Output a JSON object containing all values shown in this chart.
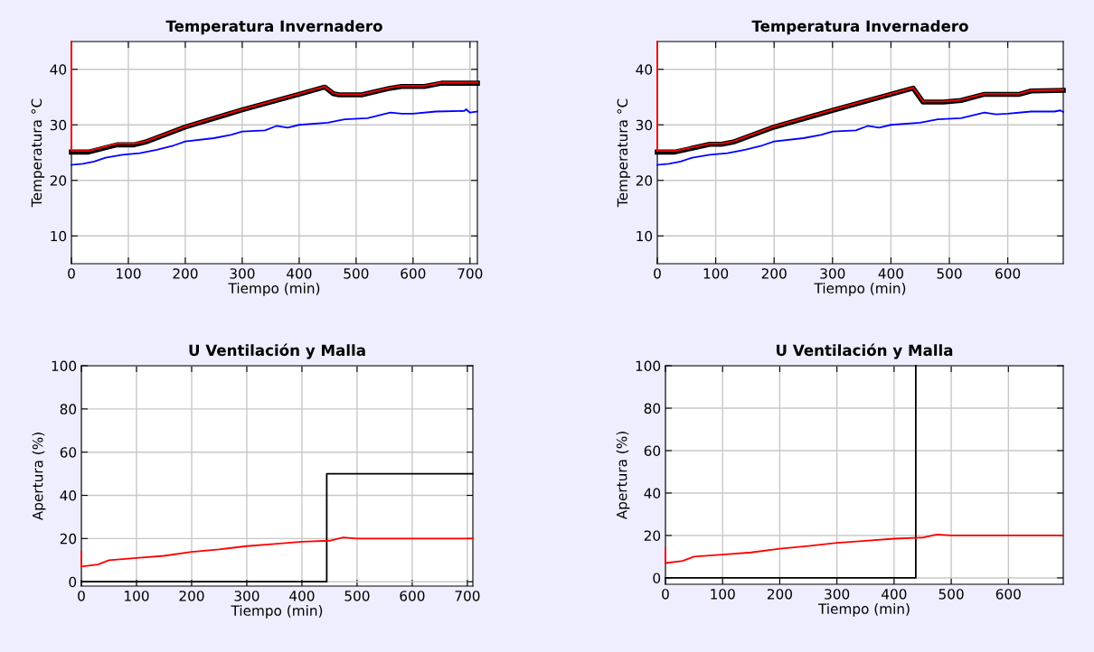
{
  "chart_data": [
    {
      "type": "line",
      "title": "Temperatura Invernadero",
      "xlabel": "Tiempo (min)",
      "ylabel": "Temperatura °C",
      "xlim": [
        0,
        713
      ],
      "ylim": [
        5,
        45
      ],
      "xticks": [
        0,
        100,
        200,
        300,
        400,
        500,
        600,
        700
      ],
      "yticks": [
        10,
        20,
        30,
        40
      ],
      "grid": true,
      "series": [
        {
          "color": "#000000",
          "x": [
            0,
            30,
            80,
            110,
            130,
            200,
            300,
            400,
            445,
            460,
            470,
            510,
            560,
            580,
            620,
            650,
            713
          ],
          "values": [
            25.1,
            25.1,
            26.4,
            26.4,
            26.9,
            29.6,
            32.7,
            35.5,
            36.8,
            35.6,
            35.4,
            35.4,
            36.6,
            36.9,
            36.9,
            37.5,
            37.5
          ]
        },
        {
          "color": "#ff0000",
          "x": [
            0,
            0,
            30,
            80,
            110,
            130,
            200,
            300,
            400,
            445,
            460,
            470,
            510,
            560,
            580,
            620,
            650,
            713
          ],
          "values": [
            45,
            25.3,
            25.3,
            26.6,
            26.6,
            27,
            29.7,
            32.8,
            35.6,
            36.9,
            35.7,
            35.5,
            35.5,
            36.7,
            37,
            37,
            37.6,
            37.6
          ]
        },
        {
          "color": "#0000ff",
          "x": [
            0,
            20,
            40,
            60,
            90,
            120,
            150,
            180,
            200,
            250,
            280,
            300,
            340,
            360,
            380,
            400,
            450,
            480,
            520,
            560,
            580,
            600,
            640,
            690,
            693,
            700,
            713
          ],
          "values": [
            22.8,
            23,
            23.4,
            24.1,
            24.6,
            24.9,
            25.5,
            26.3,
            27,
            27.6,
            28.2,
            28.8,
            29,
            29.8,
            29.5,
            30,
            30.4,
            31,
            31.2,
            32.2,
            32,
            32,
            32.4,
            32.5,
            32.8,
            32.2,
            32.4
          ]
        }
      ]
    },
    {
      "type": "line",
      "title": "Temperatura Invernadero",
      "xlabel": "Tiempo (min)",
      "ylabel": "Temperatura °C",
      "xlim": [
        0,
        695
      ],
      "ylim": [
        5,
        45
      ],
      "xticks": [
        0,
        100,
        200,
        300,
        400,
        500,
        600
      ],
      "yticks": [
        10,
        20,
        30,
        40
      ],
      "grid": true,
      "series": [
        {
          "color": "#000000",
          "x": [
            0,
            30,
            90,
            110,
            130,
            200,
            300,
            400,
            438,
            455,
            490,
            520,
            560,
            620,
            640,
            695
          ],
          "values": [
            25.1,
            25.1,
            26.5,
            26.5,
            26.9,
            29.6,
            32.6,
            35.5,
            36.6,
            34.1,
            34.1,
            34.4,
            35.5,
            35.5,
            36.1,
            36.2
          ]
        },
        {
          "color": "#ff0000",
          "x": [
            0,
            0,
            30,
            90,
            110,
            130,
            200,
            300,
            400,
            438,
            455,
            490,
            520,
            560,
            620,
            640,
            695
          ],
          "values": [
            45,
            25.3,
            25.3,
            26.6,
            26.6,
            27,
            29.7,
            32.7,
            35.6,
            36.7,
            34.2,
            34.2,
            34.5,
            35.6,
            35.6,
            36.2,
            36.3
          ]
        },
        {
          "color": "#0000ff",
          "x": [
            0,
            20,
            40,
            60,
            90,
            120,
            150,
            180,
            200,
            250,
            280,
            300,
            340,
            360,
            380,
            400,
            450,
            480,
            520,
            560,
            580,
            600,
            640,
            680,
            690,
            695
          ],
          "values": [
            22.8,
            23,
            23.4,
            24.1,
            24.6,
            24.9,
            25.5,
            26.3,
            27,
            27.6,
            28.2,
            28.8,
            29,
            29.8,
            29.5,
            30,
            30.4,
            31,
            31.2,
            32.2,
            31.9,
            32,
            32.4,
            32.4,
            32.6,
            32.3
          ]
        }
      ]
    },
    {
      "type": "line",
      "title": "U Ventilación y Malla",
      "xlabel": "Tiempo (min)",
      "ylabel": "Apertura (%)",
      "xlim": [
        0,
        710
      ],
      "ylim": [
        -2,
        100
      ],
      "xticks": [
        0,
        100,
        200,
        300,
        400,
        500,
        600,
        700
      ],
      "yticks": [
        0,
        20,
        40,
        60,
        80,
        100
      ],
      "grid": true,
      "series": [
        {
          "color": "#000000",
          "x": [
            0,
            445,
            445,
            710
          ],
          "values": [
            0,
            0,
            50,
            50
          ]
        },
        {
          "color": "#ff0000",
          "x": [
            0,
            0,
            30,
            50,
            100,
            150,
            200,
            250,
            300,
            350,
            400,
            450,
            475,
            500,
            710
          ],
          "values": [
            14,
            7,
            8,
            10,
            11,
            12,
            13.8,
            15,
            16.5,
            17.5,
            18.5,
            19,
            20.5,
            20,
            20
          ]
        }
      ]
    },
    {
      "type": "line",
      "title": "U Ventilación y Malla",
      "xlabel": "Tiempo (min)",
      "ylabel": "Apertura (%)",
      "xlim": [
        0,
        696
      ],
      "ylim": [
        -3,
        100
      ],
      "xticks": [
        0,
        100,
        200,
        300,
        400,
        500,
        600
      ],
      "yticks": [
        0,
        20,
        40,
        60,
        80,
        100
      ],
      "grid": true,
      "series": [
        {
          "color": "#000000",
          "x": [
            0,
            438,
            438
          ],
          "values": [
            0,
            0,
            100
          ]
        },
        {
          "color": "#ff0000",
          "x": [
            0,
            0,
            30,
            50,
            100,
            150,
            200,
            250,
            300,
            350,
            400,
            450,
            475,
            500,
            696
          ],
          "values": [
            14,
            7,
            8,
            10,
            11,
            12,
            13.8,
            15,
            16.5,
            17.5,
            18.5,
            19,
            20.5,
            20,
            20
          ]
        }
      ]
    }
  ]
}
